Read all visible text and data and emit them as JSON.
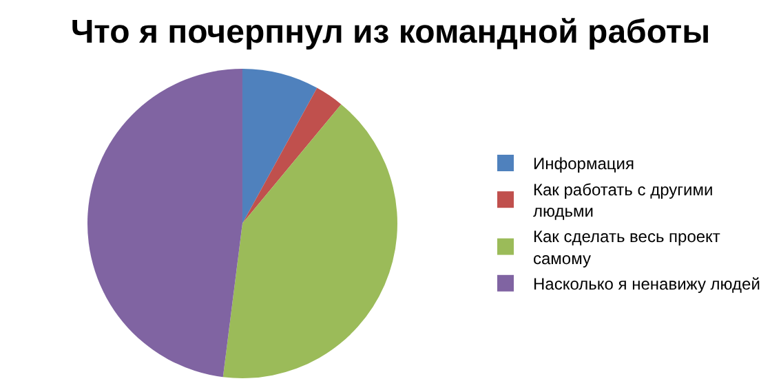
{
  "chart_data": {
    "type": "pie",
    "title": "Что я почерпнул из командной работы",
    "categories": [
      "Информация",
      "Как работать с другими людьми",
      "Как сделать весь проект самому",
      "Насколько я ненавижу людей"
    ],
    "values": [
      8,
      3,
      41,
      48
    ],
    "colors": [
      "#4f81bd",
      "#c0504d",
      "#9bbb59",
      "#8064a2"
    ],
    "legend": "right"
  }
}
